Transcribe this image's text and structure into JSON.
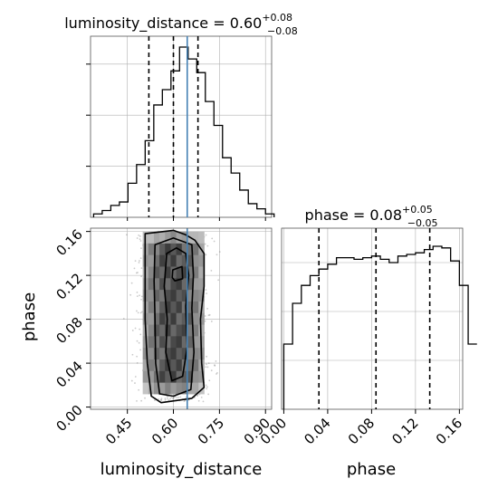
{
  "chart_data": [
    {
      "type": "histogram",
      "panel": "luminosity_distance-marginal",
      "title_param": "luminosity_distance",
      "title_value": "0.60",
      "title_plus": "+0.08",
      "title_minus": "−0.08",
      "bin_edges_start": 0.34,
      "bin_width": 0.028,
      "values": [
        0.02,
        0.04,
        0.07,
        0.09,
        0.2,
        0.31,
        0.45,
        0.66,
        0.75,
        0.86,
        1.0,
        0.93,
        0.85,
        0.68,
        0.54,
        0.35,
        0.26,
        0.16,
        0.08,
        0.05,
        0.02
      ],
      "quantiles": [
        0.52,
        0.6,
        0.68
      ],
      "truth": 0.645,
      "xlim": [
        0.33,
        0.92
      ],
      "grid": true
    },
    {
      "type": "histogram",
      "panel": "phase-marginal",
      "title_param": "phase",
      "title_value": "0.08",
      "title_plus": "+0.05",
      "title_minus": "−0.05",
      "bin_edges_start": 0.0,
      "bin_width": 0.008,
      "values": [
        0.4,
        0.65,
        0.76,
        0.82,
        0.86,
        0.89,
        0.93,
        0.93,
        0.92,
        0.93,
        0.94,
        0.92,
        0.9,
        0.94,
        0.95,
        0.96,
        0.98,
        1.0,
        0.99,
        0.91,
        0.76,
        0.4
      ],
      "quantiles": [
        0.032,
        0.084,
        0.133
      ],
      "xlim": [
        -0.002,
        0.163
      ],
      "grid": true
    },
    {
      "type": "2d-histogram-contour",
      "panel": "luminosity_distance-vs-phase",
      "x_param": "luminosity_distance",
      "y_param": "phase",
      "xlim": [
        0.33,
        0.92
      ],
      "ylim": [
        -0.002,
        0.163
      ],
      "truth_x": 0.645,
      "xticks": [
        "0.45",
        "0.60",
        "0.75",
        "0.90"
      ],
      "xtick_values": [
        0.45,
        0.6,
        0.75,
        0.9
      ],
      "yticks": [
        "0.00",
        "0.04",
        "0.08",
        "0.12",
        "0.16"
      ],
      "ytick_values": [
        0.0,
        0.04,
        0.08,
        0.12,
        0.16
      ],
      "xlabel": "luminosity_distance",
      "ylabel": "phase",
      "grid": true
    }
  ],
  "phase_axis": {
    "xticks": [
      "0.00",
      "0.04",
      "0.08",
      "0.12",
      "0.16"
    ],
    "xtick_values": [
      0.0,
      0.04,
      0.08,
      0.12,
      0.16
    ],
    "xlabel": "phase"
  },
  "colors": {
    "line": "#000000",
    "truth": "#4682b4",
    "grid": "#b0b0b0",
    "scatter": "#8a8a8a"
  }
}
